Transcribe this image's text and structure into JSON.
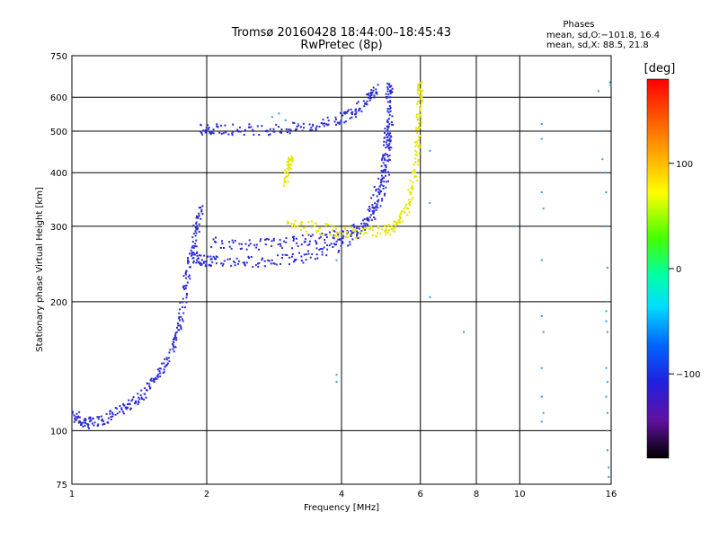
{
  "chart_data": {
    "type": "scatter",
    "title": "Tromsø 20160428 18:44:00–18:45:43",
    "subtitle": "RwPretec (8p)",
    "xlabel": "Frequency [MHz]",
    "ylabel": "Stationary phase Virtual Height [km]",
    "x_scale": "log",
    "y_scale": "log",
    "xlim": [
      1,
      16
    ],
    "ylim": [
      75,
      750
    ],
    "x_ticks": [
      1,
      2,
      4,
      6,
      8,
      10,
      16
    ],
    "x_tick_labels": [
      "1",
      "2",
      "4",
      "6",
      "8",
      "10",
      "16"
    ],
    "y_ticks": [
      75,
      100,
      200,
      300,
      400,
      500,
      600,
      750
    ],
    "y_tick_labels": [
      "75",
      "100",
      "200",
      "300",
      "400",
      "500",
      "600",
      "750"
    ],
    "grid": true,
    "phase_stats": {
      "heading": "Phases",
      "line_o": "mean, sd,O:−101.8, 16.4",
      "line_x": "mean, sd,X:  88.5, 21.8"
    },
    "colorbar": {
      "label": "[deg]",
      "range": [
        -180,
        180
      ],
      "ticks": [
        100,
        0,
        -100
      ],
      "tick_labels": [
        "100",
        "0",
        "−100"
      ]
    },
    "series": [
      {
        "mode": "O",
        "phase": -100,
        "color": "#2a2ad8",
        "traces": [
          [
            [
              1.0,
              110
            ],
            [
              1.05,
              105
            ],
            [
              1.1,
              104
            ],
            [
              1.2,
              107
            ],
            [
              1.3,
              112
            ],
            [
              1.4,
              118
            ],
            [
              1.5,
              128
            ],
            [
              1.6,
              140
            ],
            [
              1.7,
              160
            ],
            [
              1.75,
              180
            ],
            [
              1.8,
              220
            ],
            [
              1.85,
              260
            ],
            [
              1.9,
              300
            ],
            [
              1.95,
              330
            ]
          ],
          [
            [
              1.85,
              255
            ],
            [
              1.95,
              250
            ],
            [
              2.1,
              248
            ],
            [
              2.5,
              248
            ],
            [
              3.0,
              250
            ],
            [
              3.5,
              258
            ],
            [
              4.0,
              272
            ],
            [
              4.5,
              300
            ],
            [
              4.8,
              360
            ],
            [
              5.0,
              430
            ],
            [
              5.05,
              500
            ],
            [
              5.1,
              600
            ],
            [
              5.15,
              640
            ]
          ],
          [
            [
              1.95,
              505
            ],
            [
              2.1,
              505
            ],
            [
              2.5,
              505
            ],
            [
              3.0,
              505
            ],
            [
              3.5,
              515
            ],
            [
              4.0,
              535
            ],
            [
              4.3,
              560
            ],
            [
              4.6,
              600
            ],
            [
              4.8,
              625
            ]
          ],
          [
            [
              2.05,
              275
            ],
            [
              2.5,
              272
            ],
            [
              3.0,
              274
            ],
            [
              3.5,
              280
            ],
            [
              4.0,
              288
            ],
            [
              4.5,
              298
            ],
            [
              4.8,
              330
            ],
            [
              5.0,
              380
            ],
            [
              5.1,
              460
            ],
            [
              5.15,
              530
            ]
          ]
        ]
      },
      {
        "mode": "X",
        "phase": 90,
        "color": "#e6e600",
        "traces": [
          [
            [
              3.0,
              305
            ],
            [
              3.5,
              298
            ],
            [
              4.0,
              290
            ],
            [
              4.5,
              290
            ],
            [
              5.0,
              292
            ],
            [
              5.3,
              300
            ],
            [
              5.6,
              330
            ],
            [
              5.8,
              380
            ],
            [
              5.9,
              450
            ],
            [
              5.95,
              520
            ],
            [
              6.0,
              600
            ],
            [
              6.0,
              640
            ]
          ],
          [
            [
              3.0,
              380
            ],
            [
              3.05,
              420
            ],
            [
              3.1,
              430
            ]
          ]
        ]
      },
      {
        "mode": "misc",
        "phase": -60,
        "color": "#2ba0e0",
        "points": [
          [
            2.8,
            540
          ],
          [
            2.9,
            550
          ],
          [
            3.0,
            530
          ],
          [
            3.2,
            520
          ],
          [
            3.9,
            130
          ],
          [
            3.9,
            135
          ],
          [
            3.9,
            250
          ],
          [
            6.3,
            450
          ],
          [
            6.3,
            340
          ],
          [
            6.3,
            205
          ],
          [
            7.5,
            170
          ],
          [
            9.8,
            300
          ],
          [
            11.2,
            520
          ],
          [
            11.2,
            480
          ],
          [
            11.2,
            360
          ],
          [
            11.3,
            330
          ],
          [
            11.2,
            250
          ],
          [
            11.2,
            185
          ],
          [
            11.3,
            170
          ],
          [
            11.2,
            140
          ],
          [
            11.2,
            120
          ],
          [
            11.3,
            110
          ],
          [
            11.2,
            105
          ],
          [
            15.0,
            620
          ],
          [
            15.2,
            500
          ],
          [
            15.3,
            430
          ],
          [
            15.5,
            400
          ],
          [
            15.6,
            360
          ],
          [
            15.6,
            300
          ],
          [
            15.7,
            240
          ],
          [
            15.7,
            200
          ],
          [
            15.6,
            190
          ],
          [
            15.6,
            180
          ],
          [
            15.7,
            170
          ],
          [
            15.6,
            140
          ],
          [
            15.7,
            130
          ],
          [
            15.6,
            120
          ],
          [
            15.7,
            110
          ],
          [
            15.7,
            100
          ],
          [
            15.7,
            90
          ],
          [
            15.8,
            82
          ],
          [
            15.8,
            78
          ],
          [
            15.9,
            650
          ],
          [
            15.95,
            640
          ]
        ]
      }
    ]
  }
}
